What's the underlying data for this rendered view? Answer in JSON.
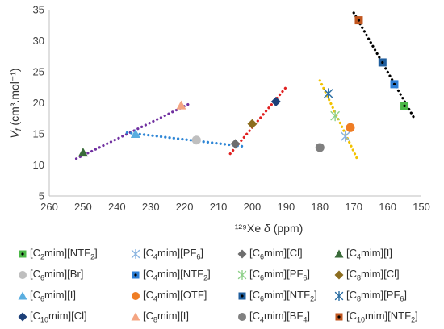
{
  "chart_data": {
    "type": "scatter",
    "xlabel_prefix": "¹²⁹Xe",
    "xlabel_symbol": "δ",
    "xlabel_unit": "(ppm)",
    "ylabel_symbol": "V",
    "ylabel_sub": "f",
    "ylabel_unit": "(cm³.mol⁻¹)",
    "xlim": [
      260,
      150
    ],
    "ylim": [
      5,
      35
    ],
    "x_ticks": [
      260,
      250,
      240,
      230,
      220,
      210,
      200,
      190,
      180,
      170,
      160,
      150
    ],
    "y_ticks": [
      5,
      10,
      15,
      20,
      25,
      30,
      35
    ],
    "reversed_x": true,
    "grid": false,
    "legend_position": "bottom",
    "series": [
      {
        "name": "[C2mim][NTF2]",
        "marker": "square",
        "color": "#4cb848",
        "dot": "#000000",
        "points": [
          [
            155,
            19.5
          ]
        ]
      },
      {
        "name": "[C4mim][PF6]",
        "marker": "asterisk",
        "color": "#8ab4e0",
        "points": [
          [
            172.5,
            14.6
          ]
        ]
      },
      {
        "name": "[C6mim][Cl]",
        "marker": "diamond",
        "color": "#6e6e6e",
        "points": [
          [
            205,
            13.4
          ]
        ]
      },
      {
        "name": "[C4mim][I]",
        "marker": "triangle",
        "color": "#3a6b3a",
        "points": [
          [
            250,
            12
          ]
        ]
      },
      {
        "name": "[C6mim][Br]",
        "marker": "circle",
        "color": "#bfbfbf",
        "points": [
          [
            216.5,
            14
          ]
        ]
      },
      {
        "name": "[C4mim][NTF2]",
        "marker": "square",
        "color": "#2e7fd6",
        "dot": "#000000",
        "points": [
          [
            158,
            23
          ]
        ]
      },
      {
        "name": "[C6mim][PF6]",
        "marker": "asterisk",
        "color": "#8fd18a",
        "points": [
          [
            175.5,
            17.9
          ]
        ]
      },
      {
        "name": "[C8mim][Cl]",
        "marker": "diamond",
        "color": "#8c6d1f",
        "points": [
          [
            200,
            16.6
          ]
        ]
      },
      {
        "name": "[C6mim][I]",
        "marker": "triangle",
        "color": "#5aaee0",
        "points": [
          [
            234.5,
            15
          ]
        ]
      },
      {
        "name": "[C4mim][OTF]",
        "marker": "circle",
        "color": "#ef7d24",
        "points": [
          [
            171,
            16
          ]
        ]
      },
      {
        "name": "[C6mim][NTF2]",
        "marker": "square",
        "color": "#1f5e9e",
        "dot": "#000000",
        "points": [
          [
            161.5,
            26.5
          ]
        ]
      },
      {
        "name": "[C8mim][PF6]",
        "marker": "asterisk",
        "color": "#2b6ea3",
        "points": [
          [
            177.5,
            21.5
          ]
        ]
      },
      {
        "name": "[C10mim][Cl]",
        "marker": "diamond",
        "color": "#1c3f78",
        "points": [
          [
            193,
            20.2
          ]
        ]
      },
      {
        "name": "[C8mim][I]",
        "marker": "triangle",
        "color": "#f4a582",
        "points": [
          [
            221,
            19.6
          ]
        ]
      },
      {
        "name": "[C4mim][BF4]",
        "marker": "circle",
        "color": "#808080",
        "points": [
          [
            180,
            12.8
          ]
        ]
      },
      {
        "name": "[C10mim][NTF2]",
        "marker": "square",
        "color": "#c1561e",
        "dot": "#000000",
        "points": [
          [
            168.5,
            33.3
          ]
        ]
      }
    ],
    "trendlines": [
      {
        "color": "#7030a0",
        "points": [
          [
            252,
            11
          ],
          [
            218,
            20
          ]
        ]
      },
      {
        "color": "#2e86d6",
        "points": [
          [
            237,
            15.2
          ],
          [
            203,
            13
          ]
        ]
      },
      {
        "color": "#e02020",
        "points": [
          [
            206.5,
            11.8
          ],
          [
            190,
            22.5
          ]
        ]
      },
      {
        "color": "#f2c200",
        "points": [
          [
            180,
            23.6
          ],
          [
            169,
            11
          ]
        ]
      },
      {
        "color": "#000000",
        "points": [
          [
            170,
            34.5
          ],
          [
            152,
            17.4
          ]
        ]
      }
    ],
    "legend": [
      {
        "pre": "[C",
        "sub1": "2",
        "mid": "mim][NTF",
        "sub2": "2",
        "post": "]"
      },
      {
        "pre": "[C",
        "sub1": "4",
        "mid": "mim][PF",
        "sub2": "6",
        "post": "]"
      },
      {
        "pre": "[C",
        "sub1": "6",
        "mid": "mim][Cl]",
        "sub2": "",
        "post": ""
      },
      {
        "pre": "[C",
        "sub1": "4",
        "mid": "mim][I]",
        "sub2": "",
        "post": ""
      },
      {
        "pre": "[C",
        "sub1": "6",
        "mid": "mim][Br]",
        "sub2": "",
        "post": ""
      },
      {
        "pre": "[C",
        "sub1": "4",
        "mid": "mim][NTF",
        "sub2": "2",
        "post": "]"
      },
      {
        "pre": "[C",
        "sub1": "6",
        "mid": "mim][PF",
        "sub2": "6",
        "post": "]"
      },
      {
        "pre": "[C",
        "sub1": "8",
        "mid": "mim][Cl]",
        "sub2": "",
        "post": ""
      },
      {
        "pre": "[C",
        "sub1": "6",
        "mid": "mim][I]",
        "sub2": "",
        "post": ""
      },
      {
        "pre": "[C",
        "sub1": "4",
        "mid": "mim][OTF]",
        "sub2": "",
        "post": ""
      },
      {
        "pre": "[C",
        "sub1": "6",
        "mid": "mim][NTF",
        "sub2": "2",
        "post": "]"
      },
      {
        "pre": "[C",
        "sub1": "8",
        "mid": "mim][PF",
        "sub2": "6",
        "post": "]"
      },
      {
        "pre": "[C",
        "sub1": "10",
        "mid": "mim][Cl]",
        "sub2": "",
        "post": ""
      },
      {
        "pre": "[C",
        "sub1": "8",
        "mid": "mim][I]",
        "sub2": "",
        "post": ""
      },
      {
        "pre": "[C",
        "sub1": "4",
        "mid": "mim][BF",
        "sub2": "4",
        "post": "]"
      },
      {
        "pre": "[C",
        "sub1": "10",
        "mid": "mim][NTF",
        "sub2": "2",
        "post": "]"
      }
    ]
  }
}
